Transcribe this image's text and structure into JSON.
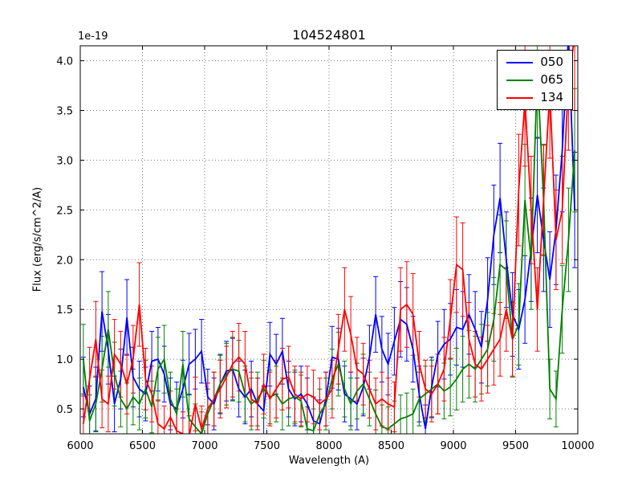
{
  "chart_data": {
    "type": "line",
    "title": "104524801",
    "xlabel": "Wavelength (A)",
    "ylabel": "Flux (erg/s/cm^2/A)",
    "y_offset_label": "1e-19",
    "xlim": [
      6000,
      10000
    ],
    "ylim": [
      0.25,
      4.15
    ],
    "xticks": [
      6000,
      6500,
      7000,
      7500,
      8000,
      8500,
      9000,
      9500,
      10000
    ],
    "yticks": [
      0.5,
      1.0,
      1.5,
      2.0,
      2.5,
      3.0,
      3.5,
      4.0
    ],
    "grid": true,
    "legend_position": "upper right",
    "x": [
      6025,
      6075,
      6125,
      6175,
      6225,
      6275,
      6325,
      6375,
      6425,
      6475,
      6525,
      6575,
      6625,
      6675,
      6725,
      6775,
      6825,
      6875,
      6925,
      6975,
      7025,
      7075,
      7125,
      7175,
      7225,
      7275,
      7325,
      7375,
      7425,
      7475,
      7525,
      7575,
      7625,
      7675,
      7725,
      7775,
      7825,
      7875,
      7925,
      7975,
      8025,
      8075,
      8125,
      8175,
      8225,
      8275,
      8325,
      8375,
      8425,
      8475,
      8525,
      8575,
      8625,
      8675,
      8725,
      8775,
      8825,
      8875,
      8925,
      8975,
      9025,
      9075,
      9125,
      9175,
      9225,
      9275,
      9325,
      9375,
      9425,
      9475,
      9525,
      9575,
      9625,
      9675,
      9725,
      9775,
      9825,
      9875,
      9925,
      9975
    ],
    "series": [
      {
        "name": "050",
        "color": "#0000ff",
        "values": [
          0.72,
          0.45,
          0.6,
          1.48,
          1.1,
          0.55,
          0.8,
          1.42,
          0.82,
          0.7,
          0.65,
          0.98,
          1.0,
          0.85,
          0.55,
          0.5,
          0.7,
          0.95,
          1.0,
          1.08,
          0.62,
          0.55,
          0.75,
          0.88,
          0.9,
          0.7,
          0.62,
          0.7,
          0.55,
          0.48,
          1.05,
          0.95,
          1.08,
          0.7,
          0.6,
          0.65,
          0.55,
          0.38,
          0.35,
          0.6,
          1.02,
          1.0,
          0.65,
          0.6,
          0.55,
          0.72,
          1.02,
          1.45,
          1.1,
          0.95,
          1.18,
          1.4,
          1.35,
          1.1,
          0.65,
          0.3,
          0.72,
          1.05,
          1.15,
          1.2,
          1.32,
          1.3,
          1.45,
          1.3,
          1.12,
          1.6,
          2.25,
          2.62,
          2.0,
          1.45,
          1.3,
          1.6,
          2.1,
          2.65,
          2.2,
          1.8,
          2.3,
          3.1,
          4.25,
          2.5
        ],
        "errors": [
          0.3,
          0.28,
          0.32,
          0.4,
          0.35,
          0.28,
          0.3,
          0.38,
          0.3,
          0.28,
          0.27,
          0.3,
          0.32,
          0.28,
          0.26,
          0.27,
          0.29,
          0.31,
          0.3,
          0.32,
          0.28,
          0.26,
          0.29,
          0.3,
          0.31,
          0.28,
          0.27,
          0.28,
          0.26,
          0.25,
          0.32,
          0.3,
          0.33,
          0.28,
          0.27,
          0.28,
          0.26,
          0.24,
          0.24,
          0.27,
          0.31,
          0.31,
          0.28,
          0.27,
          0.26,
          0.29,
          0.32,
          0.38,
          0.33,
          0.31,
          0.34,
          0.38,
          0.37,
          0.33,
          0.28,
          0.24,
          0.3,
          0.33,
          0.35,
          0.36,
          0.38,
          0.38,
          0.4,
          0.38,
          0.36,
          0.42,
          0.5,
          0.55,
          0.48,
          0.42,
          0.4,
          0.44,
          0.52,
          0.58,
          0.52,
          0.48,
          0.55,
          0.62,
          0.72,
          0.58
        ]
      },
      {
        "name": "065",
        "color": "#008000",
        "values": [
          1.0,
          0.38,
          0.55,
          0.9,
          1.3,
          0.85,
          0.6,
          0.5,
          0.62,
          0.55,
          0.7,
          0.52,
          0.9,
          1.0,
          0.6,
          0.45,
          0.95,
          0.4,
          0.32,
          0.25,
          0.45,
          0.6,
          0.75,
          0.85,
          0.9,
          0.88,
          0.65,
          0.55,
          0.6,
          0.7,
          0.62,
          0.65,
          0.55,
          0.6,
          0.62,
          0.58,
          0.3,
          0.28,
          0.45,
          0.55,
          0.8,
          0.95,
          0.7,
          0.55,
          0.68,
          0.75,
          0.6,
          0.45,
          0.32,
          0.3,
          0.35,
          0.4,
          0.42,
          0.45,
          0.6,
          0.65,
          0.7,
          0.75,
          0.68,
          0.72,
          0.8,
          0.9,
          0.95,
          0.9,
          1.0,
          1.1,
          1.4,
          1.95,
          1.9,
          1.2,
          1.35,
          2.6,
          2.0,
          3.9,
          2.6,
          0.7,
          0.6,
          1.5,
          2.2,
          3.1
        ],
        "errors": [
          0.35,
          0.26,
          0.28,
          0.33,
          0.38,
          0.32,
          0.28,
          0.26,
          0.28,
          0.26,
          0.29,
          0.26,
          0.32,
          0.34,
          0.27,
          0.25,
          0.33,
          0.25,
          0.23,
          0.22,
          0.25,
          0.27,
          0.3,
          0.31,
          0.32,
          0.31,
          0.28,
          0.26,
          0.27,
          0.29,
          0.27,
          0.28,
          0.26,
          0.27,
          0.27,
          0.26,
          0.22,
          0.22,
          0.25,
          0.26,
          0.3,
          0.32,
          0.28,
          0.26,
          0.28,
          0.3,
          0.27,
          0.24,
          0.22,
          0.22,
          0.23,
          0.24,
          0.24,
          0.25,
          0.27,
          0.28,
          0.29,
          0.3,
          0.28,
          0.29,
          0.31,
          0.33,
          0.34,
          0.33,
          0.35,
          0.37,
          0.42,
          0.5,
          0.49,
          0.38,
          0.41,
          0.56,
          0.5,
          0.68,
          0.56,
          0.3,
          0.28,
          0.44,
          0.52,
          0.62
        ]
      },
      {
        "name": "134",
        "color": "#ff0000",
        "values": [
          0.35,
          0.8,
          1.2,
          0.6,
          0.55,
          1.05,
          0.95,
          0.75,
          1.0,
          1.55,
          0.8,
          0.65,
          0.35,
          0.3,
          0.42,
          0.28,
          0.25,
          0.22,
          0.55,
          0.3,
          0.5,
          0.6,
          0.7,
          0.82,
          0.95,
          1.02,
          0.95,
          0.6,
          0.55,
          0.75,
          0.6,
          0.7,
          0.8,
          0.82,
          0.65,
          0.6,
          0.65,
          0.62,
          0.55,
          0.6,
          0.7,
          1.1,
          1.5,
          1.25,
          0.9,
          0.85,
          0.7,
          0.55,
          0.6,
          0.55,
          0.52,
          1.5,
          1.55,
          1.45,
          0.95,
          0.7,
          0.65,
          0.75,
          0.9,
          1.4,
          1.95,
          1.9,
          1.2,
          0.95,
          0.9,
          1.0,
          1.1,
          1.2,
          1.5,
          1.2,
          2.7,
          3.6,
          2.5,
          1.5,
          2.6,
          3.7,
          2.2,
          2.5,
          3.8,
          4.25
        ],
        "errors": [
          0.28,
          0.32,
          0.38,
          0.29,
          0.28,
          0.35,
          0.33,
          0.3,
          0.34,
          0.42,
          0.31,
          0.28,
          0.24,
          0.23,
          0.26,
          0.22,
          0.22,
          0.21,
          0.27,
          0.23,
          0.26,
          0.27,
          0.29,
          0.31,
          0.33,
          0.34,
          0.33,
          0.27,
          0.26,
          0.3,
          0.27,
          0.29,
          0.31,
          0.31,
          0.28,
          0.27,
          0.28,
          0.27,
          0.26,
          0.27,
          0.29,
          0.35,
          0.42,
          0.38,
          0.32,
          0.31,
          0.29,
          0.26,
          0.27,
          0.26,
          0.25,
          0.42,
          0.43,
          0.41,
          0.33,
          0.29,
          0.28,
          0.3,
          0.32,
          0.4,
          0.48,
          0.47,
          0.37,
          0.33,
          0.32,
          0.34,
          0.36,
          0.37,
          0.42,
          0.37,
          0.56,
          0.66,
          0.54,
          0.42,
          0.55,
          0.68,
          0.5,
          0.54,
          0.7,
          0.75
        ]
      }
    ]
  }
}
